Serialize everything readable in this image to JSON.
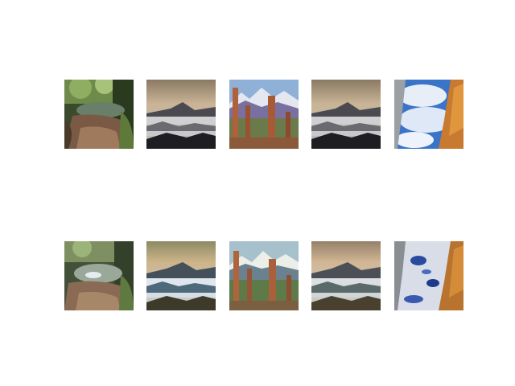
{
  "figure": {
    "rows": 2,
    "columns": 5
  },
  "images": [
    {
      "row": 1,
      "col": 1,
      "subject": "forest-pool"
    },
    {
      "row": 1,
      "col": 2,
      "subject": "misty-mountains"
    },
    {
      "row": 1,
      "col": 3,
      "subject": "rock-spires-snowy-peaks"
    },
    {
      "row": 1,
      "col": 4,
      "subject": "misty-mountains"
    },
    {
      "row": 1,
      "col": 5,
      "subject": "sky-with-cliff"
    },
    {
      "row": 2,
      "col": 1,
      "subject": "forest-pool"
    },
    {
      "row": 2,
      "col": 2,
      "subject": "misty-mountains"
    },
    {
      "row": 2,
      "col": 3,
      "subject": "rock-spires-snowy-peaks"
    },
    {
      "row": 2,
      "col": 4,
      "subject": "misty-mountains"
    },
    {
      "row": 2,
      "col": 5,
      "subject": "sky-with-cliff"
    }
  ]
}
